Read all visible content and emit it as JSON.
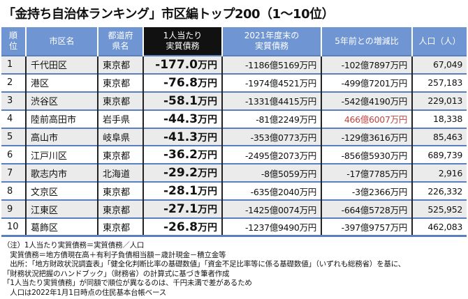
{
  "title": "「金持ち自治体ランキング」市区編トップ200（1〜10位）",
  "headers": [
    "順位",
    "市区名",
    "都道府県名",
    "1人当たり実質債務",
    "2021年度末の実質債務",
    "5年前との増減比",
    "人口（人）"
  ],
  "highlight_color": "#c0443f",
  "rows": [
    {
      "rank": "1",
      "city": "千代田区",
      "pref": "東京都",
      "per_capita": "-177.0",
      "unit": "万円",
      "debt": "-1186億5169万円",
      "change": "-102億7897万円",
      "pop": "67,049"
    },
    {
      "rank": "2",
      "city": "港区",
      "pref": "東京都",
      "per_capita": "-76.8",
      "unit": "万円",
      "debt": "-1974億4521万円",
      "change": "-499億7201万円",
      "pop": "257,183"
    },
    {
      "rank": "3",
      "city": "渋谷区",
      "pref": "東京都",
      "per_capita": "-58.1",
      "unit": "万円",
      "debt": "-1331億4415万円",
      "change": "-542億4190万円",
      "pop": "229,013"
    },
    {
      "rank": "4",
      "city": "陸前高田市",
      "pref": "岩手県",
      "per_capita": "-44.3",
      "unit": "万円",
      "debt": "-81億2249万円",
      "change": "466億6007万円",
      "pop": "18,338",
      "change_red": true
    },
    {
      "rank": "5",
      "city": "高山市",
      "pref": "岐阜県",
      "per_capita": "-41.3",
      "unit": "万円",
      "debt": "-353億0773万円",
      "change": "-129億3616万円",
      "pop": "85,463"
    },
    {
      "rank": "6",
      "city": "江戸川区",
      "pref": "東京都",
      "per_capita": "-36.2",
      "unit": "万円",
      "debt": "-2495億2073万円",
      "change": "-856億5930万円",
      "pop": "689,739"
    },
    {
      "rank": "7",
      "city": "歌志内市",
      "pref": "北海道",
      "per_capita": "-29.2",
      "unit": "万円",
      "debt": "-8億5059万円",
      "change": "-17億7785万円",
      "pop": "2,916"
    },
    {
      "rank": "8",
      "city": "文京区",
      "pref": "東京都",
      "per_capita": "-28.1",
      "unit": "万円",
      "debt": "-635億2040万円",
      "change": "-3億2366万円",
      "pop": "226,332"
    },
    {
      "rank": "9",
      "city": "江東区",
      "pref": "東京都",
      "per_capita": "-27.1",
      "unit": "万円",
      "debt": "-1425億0074万円",
      "change": "-664億5728万円",
      "pop": "525,952"
    },
    {
      "rank": "10",
      "city": "葛飾区",
      "pref": "東京都",
      "per_capita": "-26.8",
      "unit": "万円",
      "debt": "-1237億9490万円",
      "change": "-397億9757万円",
      "pop": "462,083"
    }
  ],
  "notes": [
    "（注）1人当たり実質債務＝実質債務／人口",
    "　実質債務＝地方債現在高＋有利子負債相当額－歳計現金－積立金等",
    "　出所：「地方財政状況調査表」「健全化判断比率の基礎数値」「資金不足比率等に係る基礎数値」（いずれも総務省）を基に、",
    "「財務状況把握のハンドブック」（財務省）の計算式に基づき筆者作成",
    "「1人当たり実質債務」が同額で順位が異なるのは、千円未満で差があるため",
    "　人口は2022年1月1日時点の住民基本台帳ベース"
  ]
}
